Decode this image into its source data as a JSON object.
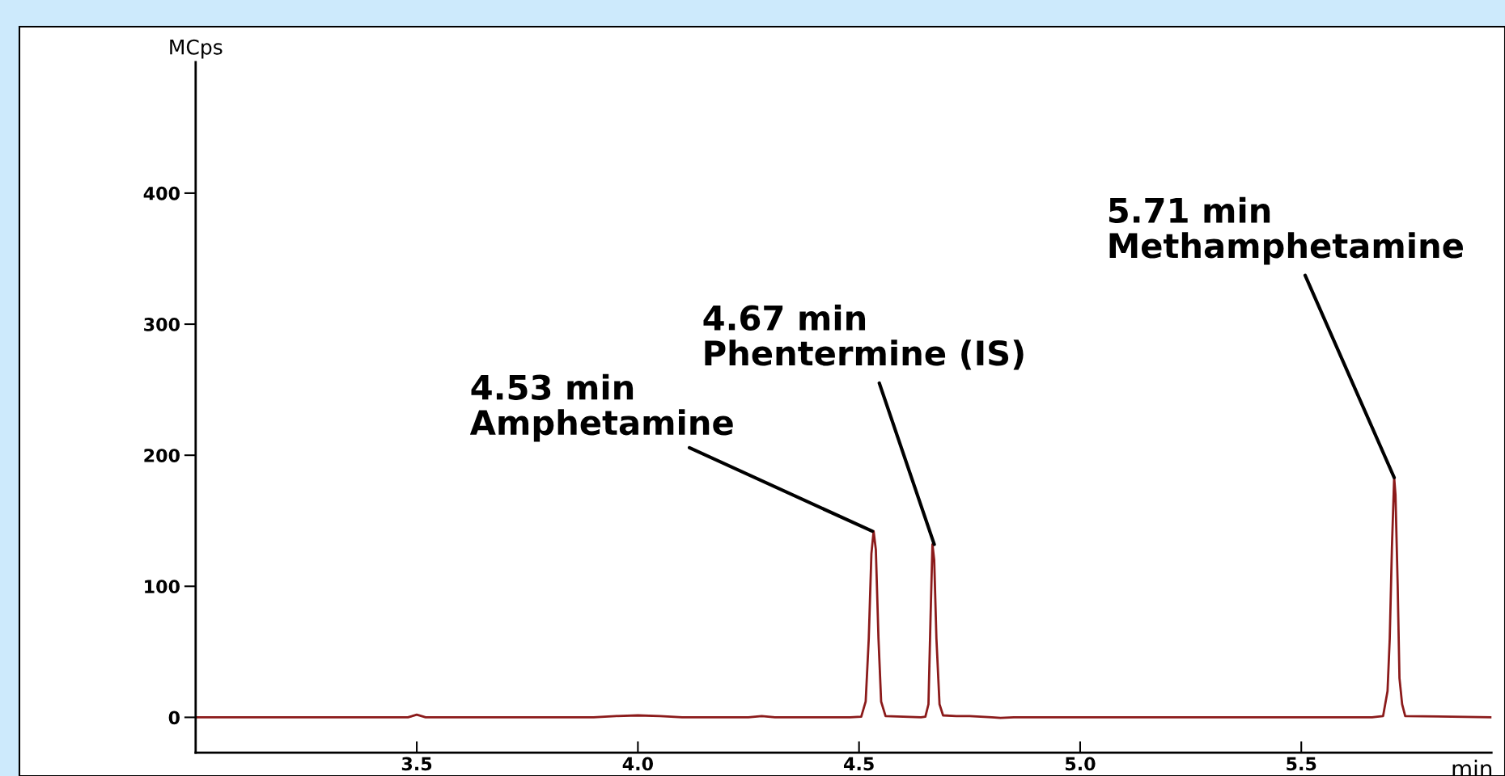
{
  "chart_data": {
    "type": "line",
    "xlabel": "min",
    "ylabel": "MCps",
    "x": [
      3.0,
      3.05,
      3.48,
      3.5,
      3.52,
      3.9,
      3.95,
      4.0,
      4.05,
      4.1,
      4.25,
      4.28,
      4.31,
      4.48,
      4.505,
      4.515,
      4.522,
      4.528,
      4.533,
      4.538,
      4.544,
      4.55,
      4.56,
      4.64,
      4.65,
      4.657,
      4.662,
      4.666,
      4.67,
      4.675,
      4.682,
      4.69,
      4.72,
      4.75,
      4.8,
      4.82,
      4.85,
      5.66,
      5.685,
      5.695,
      5.7,
      5.705,
      5.71,
      5.713,
      5.718,
      5.722,
      5.728,
      5.735,
      5.93
    ],
    "series": [
      {
        "color": "#8b1a1a",
        "values": [
          0,
          0,
          0,
          2,
          0,
          0,
          1,
          1.5,
          1,
          0,
          0,
          1,
          0,
          0,
          0.5,
          12,
          60,
          125,
          142,
          128,
          60,
          12,
          1,
          0,
          0.5,
          10,
          80,
          132,
          120,
          60,
          10,
          1.5,
          1,
          1,
          0,
          -0.5,
          0,
          0,
          1,
          20,
          60,
          130,
          183,
          170,
          100,
          30,
          10,
          1,
          0
        ]
      }
    ],
    "xlim": [
      3.0,
      5.93
    ],
    "ylim": [
      -27,
      500
    ],
    "xticks": [
      3.5,
      {
        "value": 4.0,
        "label": "4.0"
      },
      4.5,
      {
        "value": 5.0,
        "label": "5.0"
      },
      5.5
    ],
    "yticks": [
      0,
      100,
      200,
      300,
      400
    ],
    "annotations": [
      {
        "text": "4.53 min\nAmphetamine",
        "x": 4.53,
        "y": 142
      },
      {
        "text": "4.67 min\nPhentermine (IS)",
        "x": 4.67,
        "y": 132
      },
      {
        "text": "5.71 min\nMethamphetamine",
        "x": 5.71,
        "y": 183
      }
    ],
    "grid": false,
    "legend": false,
    "marker": "none",
    "line_style": "solid"
  }
}
